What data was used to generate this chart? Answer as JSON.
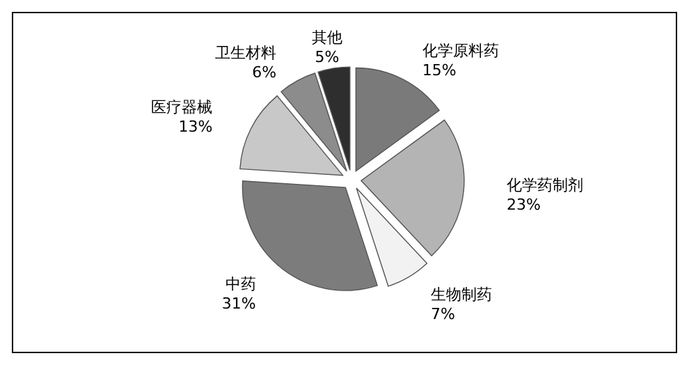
{
  "chart_data": {
    "type": "pie",
    "categories": [
      "化学原料药",
      "化学药制剂",
      "生物制药",
      "中药",
      "医疗器械",
      "卫生材料",
      "其他"
    ],
    "values": [
      15,
      23,
      7,
      31,
      13,
      6,
      5
    ],
    "value_labels": [
      "15%",
      "23%",
      "7%",
      "31%",
      "13%",
      "6%",
      "5%"
    ],
    "colors": [
      "#7a7a7a",
      "#b4b4b4",
      "#f2f2f2",
      "#7c7c7c",
      "#c8c8c8",
      "#8c8c8c",
      "#2e2e2e"
    ]
  }
}
